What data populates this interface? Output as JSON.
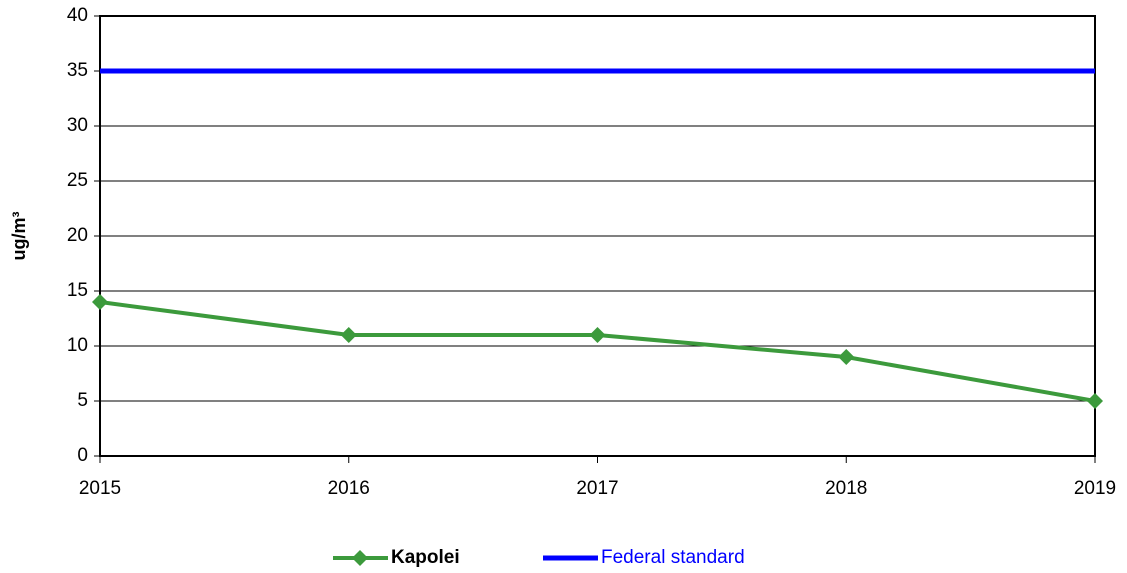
{
  "chart_data": {
    "type": "line",
    "y_label": "ug/m³",
    "x": [
      2015,
      2016,
      2017,
      2018,
      2019
    ],
    "series": [
      {
        "name": "Kapolei",
        "color": "#3c9a3c",
        "values": [
          14,
          11,
          11,
          9,
          5
        ],
        "marker": "diamond"
      },
      {
        "name": "Federal standard",
        "color": "#0000ff",
        "values": [
          35,
          35,
          35,
          35,
          35
        ]
      }
    ],
    "xlim": [
      2015,
      2019
    ],
    "xticks": [
      2015,
      2016,
      2017,
      2018,
      2019
    ],
    "ylim": [
      0,
      40
    ],
    "yticks": [
      0,
      5,
      10,
      15,
      20,
      25,
      30,
      35,
      40
    ],
    "grid": true,
    "legend": "bottom"
  }
}
